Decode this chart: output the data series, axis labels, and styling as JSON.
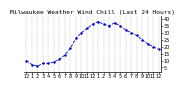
{
  "title": "Milwaukee Weather Wind Chill (Last 24 Hours)",
  "x_values": [
    0,
    1,
    2,
    3,
    4,
    5,
    6,
    7,
    8,
    9,
    10,
    11,
    12,
    13,
    14,
    15,
    16,
    17,
    18,
    19,
    20,
    21,
    22,
    23,
    24
  ],
  "y_values": [
    10,
    7,
    6,
    8,
    8,
    9,
    11,
    14,
    19,
    26,
    30,
    33,
    36,
    38,
    36,
    35,
    37,
    35,
    32,
    30,
    28,
    25,
    22,
    20,
    18
  ],
  "ylim": [
    2,
    42
  ],
  "yticks": [
    5,
    10,
    15,
    20,
    25,
    30,
    35,
    40
  ],
  "ytick_labels": [
    "5",
    "10",
    "15",
    "20",
    "25",
    "30",
    "35",
    "40"
  ],
  "line_color": "#0000cc",
  "marker_color": "#0000cc",
  "background_color": "#ffffff",
  "grid_color": "#888888",
  "title_fontsize": 4.5,
  "tick_fontsize": 3.5,
  "xtick_labels": [
    "12",
    "1",
    "2",
    "3",
    "4",
    "5",
    "6",
    "7",
    "8",
    "9",
    "10",
    "11",
    "12",
    "1",
    "2",
    "3",
    "4",
    "5",
    "6",
    "7",
    "8",
    "9",
    "10",
    "11",
    "12"
  ]
}
